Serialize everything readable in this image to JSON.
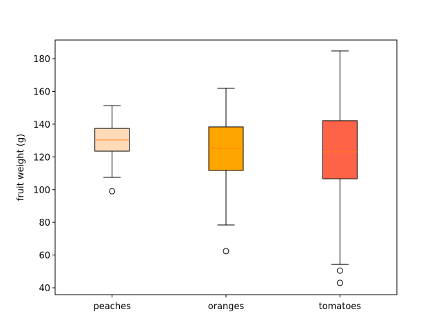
{
  "chart_data": {
    "type": "boxplot",
    "ylabel": "fruit weight (g)",
    "categories": [
      "peaches",
      "oranges",
      "tomatoes"
    ],
    "boxes": [
      {
        "color": "peachpuff",
        "whislo": 107.5,
        "q1": 123.5,
        "med": 130.3,
        "q3": 137.4,
        "whishi": 151.3,
        "fliers": [
          99.0
        ]
      },
      {
        "color": "orange",
        "whislo": 78.4,
        "q1": 111.7,
        "med": 125.2,
        "q3": 138.3,
        "whishi": 161.9,
        "fliers": [
          62.4
        ]
      },
      {
        "color": "tomato",
        "whislo": 54.3,
        "q1": 106.6,
        "med": 123.1,
        "q3": 142.1,
        "whishi": 184.7,
        "fliers": [
          50.5,
          43.0
        ]
      }
    ],
    "median_color": "#ff7f0e",
    "ylim": [
      35.8,
      191.4
    ],
    "yticks": [
      40,
      60,
      80,
      100,
      120,
      140,
      160,
      180
    ]
  }
}
